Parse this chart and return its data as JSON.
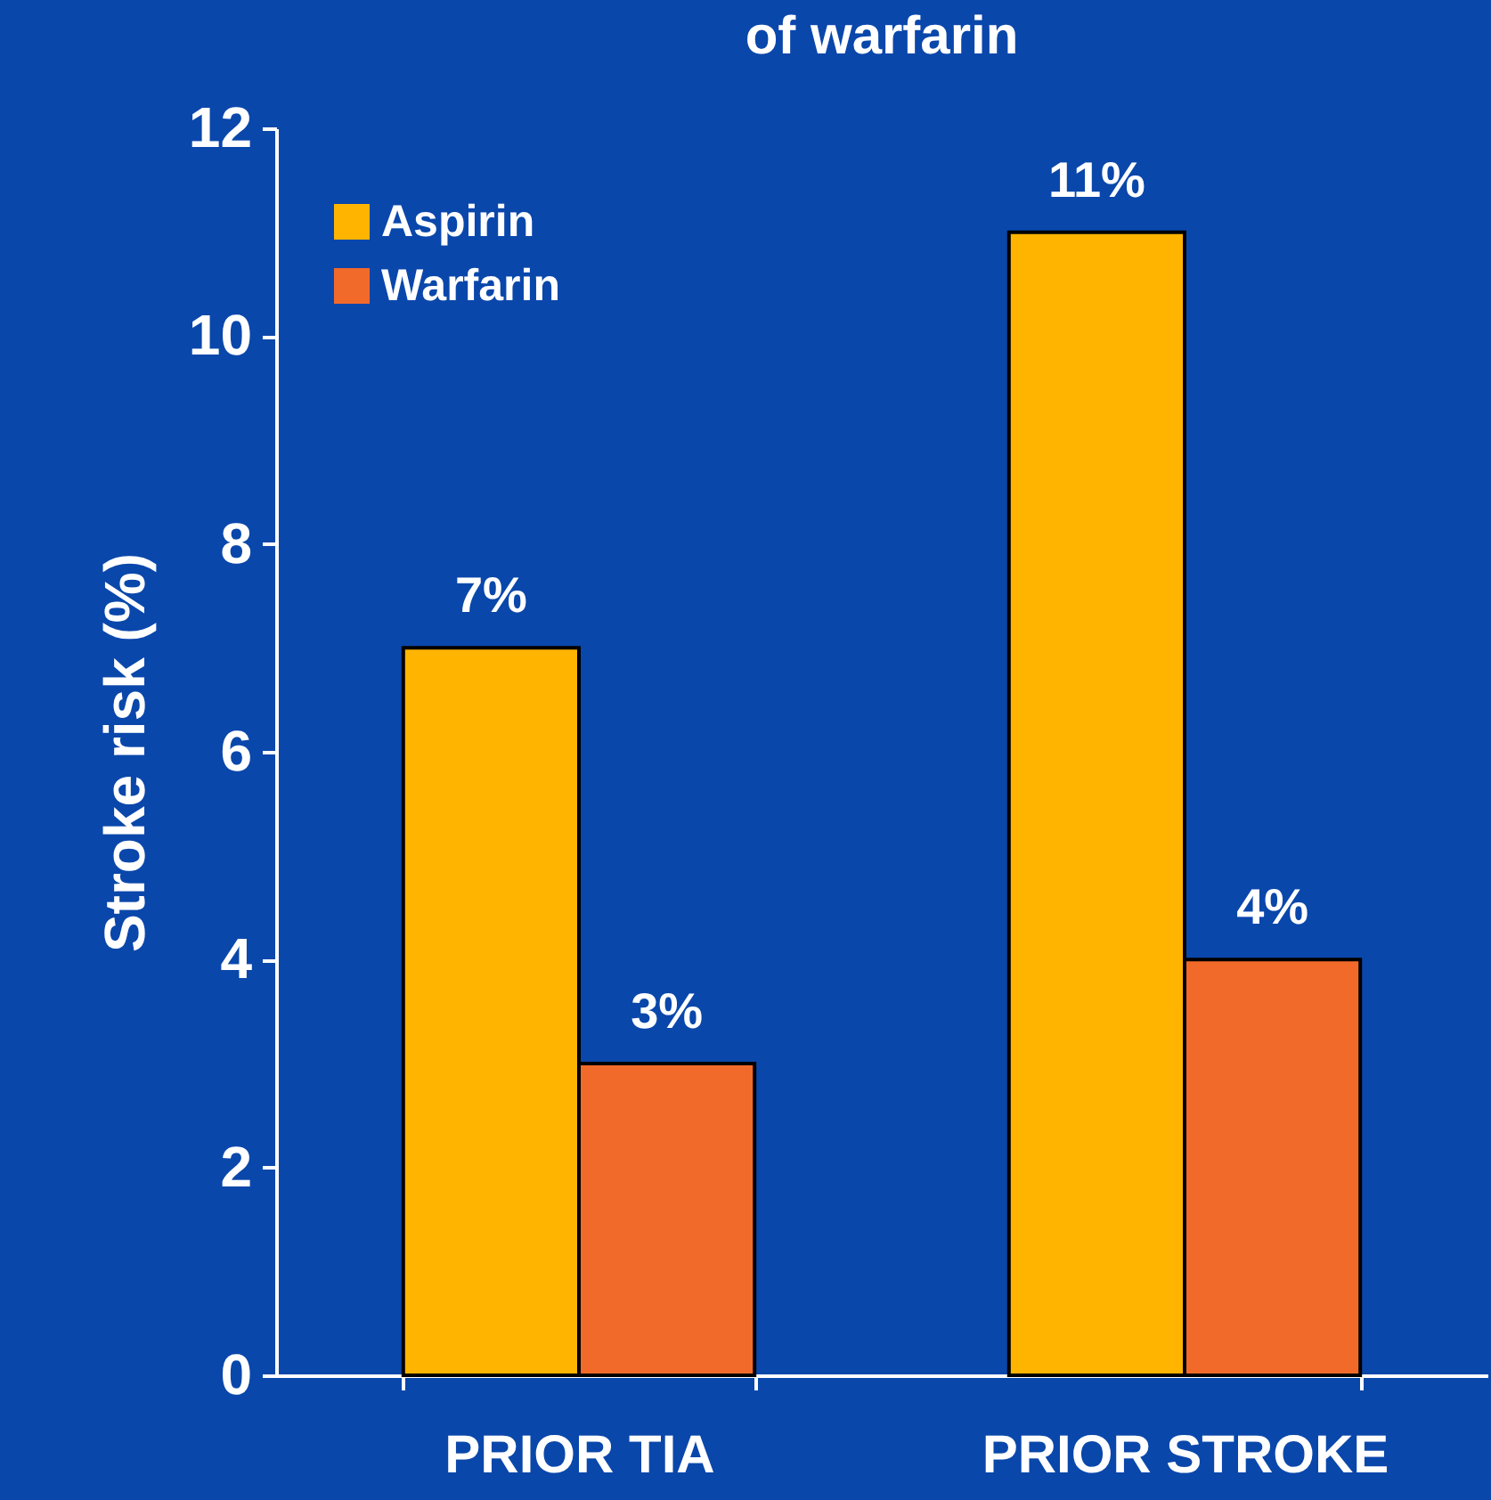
{
  "chart_data": {
    "type": "bar",
    "title": "of warfarin",
    "ylabel": "Stroke risk (%)",
    "categories": [
      "PRIOR TIA",
      "PRIOR STROKE"
    ],
    "series": [
      {
        "name": "Aspirin",
        "color": "#ffb400",
        "values": [
          7,
          11
        ],
        "value_labels": [
          "7%",
          "11%"
        ]
      },
      {
        "name": "Warfarin",
        "color": "#f26a2a",
        "values": [
          3,
          4
        ],
        "value_labels": [
          "3%",
          "4%"
        ]
      }
    ],
    "ylim": [
      0,
      12
    ],
    "yticks": [
      0,
      2,
      4,
      6,
      8,
      10,
      12
    ],
    "grid": false,
    "legend": "top left"
  }
}
